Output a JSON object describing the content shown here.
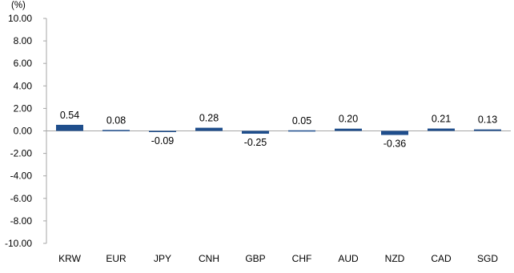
{
  "chart_data": {
    "type": "bar",
    "unit_label": "(%)",
    "categories": [
      "KRW",
      "EUR",
      "JPY",
      "CNH",
      "GBP",
      "CHF",
      "AUD",
      "NZD",
      "CAD",
      "SGD"
    ],
    "values": [
      0.54,
      0.08,
      -0.09,
      0.28,
      -0.25,
      0.05,
      0.2,
      -0.36,
      0.21,
      0.13
    ],
    "value_labels": [
      "0.54",
      "0.08",
      "-0.09",
      "0.28",
      "-0.25",
      "0.05",
      "0.20",
      "-0.36",
      "0.21",
      "0.13"
    ],
    "ylim": [
      -10,
      10
    ],
    "yticks": [
      "10.00",
      "8.00",
      "6.00",
      "4.00",
      "2.00",
      "0.00",
      "-2.00",
      "-4.00",
      "-6.00",
      "-8.00",
      "-10.00"
    ],
    "ytick_values": [
      10,
      8,
      6,
      4,
      2,
      0,
      -2,
      -4,
      -6,
      -8,
      -10
    ],
    "grid": false,
    "legend": "none",
    "colors": {
      "bar": "#1f4e8c",
      "axis": "#a6a6a6"
    }
  }
}
